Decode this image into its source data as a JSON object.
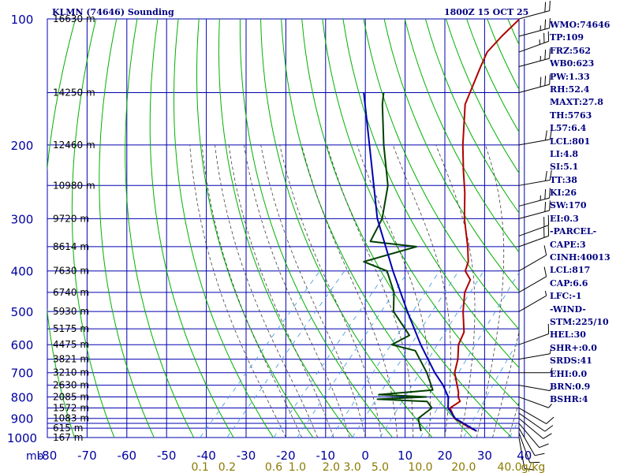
{
  "header": {
    "title": "KLMN (74646) Sounding",
    "time": "1800Z 15 OCT 25"
  },
  "stats": [
    "WMO:74646",
    "TP:109",
    "FRZ:562",
    "WB0:623",
    "PW:1.33",
    "RH:52.4",
    "MAXT:27.8",
    "TH:5763",
    "L57:6.4",
    "LCL:801",
    "LI:4.8",
    "SI:5.1",
    "TT:38",
    "KI:26",
    "SW:170",
    "EI:0.3",
    "-PARCEL-",
    "CAPE:3",
    "CINH:40013",
    "LCL:817",
    "CAP:6.6",
    "LFC:-1",
    "-WIND-",
    "STM:225/10",
    "HEL:30",
    "SHR+:0.0",
    "SRDS:41",
    "EHI:0.0",
    "BRN:0.9",
    "BSHR:4"
  ],
  "colors": {
    "frame": "#000080",
    "grid": "#0000b0",
    "dry_adiabat": "#00b000",
    "moist_adiabat": "#404040",
    "mixing_ratio": "#4aa0e0",
    "temperature": "#b00000",
    "dewpoint": "#004000",
    "parcel": "#0000b0",
    "axis_text": "#0000a0",
    "mixing_text": "#8b7a00",
    "height_text": "#000000"
  },
  "chart_data": {
    "type": "line",
    "title": "KLMN (74646) Sounding",
    "ylabel": "mb",
    "xlabel": "",
    "pressure_ticks": [
      100,
      200,
      300,
      400,
      500,
      600,
      700,
      800,
      900,
      1000
    ],
    "pressure_tick_labels": [
      "100",
      "200",
      "300",
      "400",
      "500",
      "600",
      "700",
      "800",
      "900",
      "1000"
    ],
    "isobar_levels": [
      100,
      150,
      200,
      250,
      300,
      350,
      400,
      450,
      500,
      550,
      600,
      650,
      700,
      750,
      800,
      850,
      900,
      925,
      950,
      1000
    ],
    "temperature_ticks": [
      -80,
      -70,
      -60,
      -50,
      -40,
      -30,
      -20,
      -10,
      0,
      10,
      20,
      30,
      40
    ],
    "temperature_tick_labels": [
      "-80",
      "-70",
      "-60",
      "-50",
      "-40",
      "-30",
      "-20",
      "-10",
      "0",
      "10",
      "20",
      "30",
      "40"
    ],
    "mixing_ratio_labels": [
      {
        "text": "0.1",
        "w": 0.1
      },
      {
        "text": "0.2",
        "w": 0.2
      },
      {
        "text": "0.6",
        "w": 0.6
      },
      {
        "text": "1.0",
        "w": 1.0
      },
      {
        "text": "2.0",
        "w": 2.0
      },
      {
        "text": "3.0",
        "w": 3.0
      },
      {
        "text": "5.0",
        "w": 5.0
      },
      {
        "text": "10.0",
        "w": 10.0
      },
      {
        "text": "20.0",
        "w": 20.0
      },
      {
        "text": "40.0",
        "w": 40.0
      }
    ],
    "mixing_unit_label": "g/kg",
    "height_labels": [
      {
        "p": 100,
        "text": "16630 m"
      },
      {
        "p": 150,
        "text": "14250 m"
      },
      {
        "p": 200,
        "text": "12460 m"
      },
      {
        "p": 250,
        "text": "10980 m"
      },
      {
        "p": 300,
        "text": "9720 m"
      },
      {
        "p": 350,
        "text": "8614 m"
      },
      {
        "p": 400,
        "text": "7630 m"
      },
      {
        "p": 450,
        "text": "6740 m"
      },
      {
        "p": 500,
        "text": "5930 m"
      },
      {
        "p": 550,
        "text": "5175 m"
      },
      {
        "p": 600,
        "text": "4475 m"
      },
      {
        "p": 650,
        "text": "3821 m"
      },
      {
        "p": 700,
        "text": "3210 m"
      },
      {
        "p": 750,
        "text": "2630 m"
      },
      {
        "p": 800,
        "text": "2085 m"
      },
      {
        "p": 850,
        "text": "1572 m"
      },
      {
        "p": 900,
        "text": "1083 m"
      },
      {
        "p": 950,
        "text": "615 m"
      },
      {
        "p": 1000,
        "text": "167 m"
      }
    ],
    "series": [
      {
        "name": "",
        "kind": "temperature",
        "points": [
          {
            "p": 965,
            "t": 26.5
          },
          {
            "p": 940,
            "t": 23.0
          },
          {
            "p": 900,
            "t": 18.0
          },
          {
            "p": 850,
            "t": 14.5
          },
          {
            "p": 820,
            "t": 15.5
          },
          {
            "p": 800,
            "t": 14.0
          },
          {
            "p": 780,
            "t": 13.0
          },
          {
            "p": 700,
            "t": 7.5
          },
          {
            "p": 650,
            "t": 5.2
          },
          {
            "p": 600,
            "t": 2.0
          },
          {
            "p": 560,
            "t": 0.5
          },
          {
            "p": 500,
            "t": -4.5
          },
          {
            "p": 450,
            "t": -8.5
          },
          {
            "p": 420,
            "t": -10.0
          },
          {
            "p": 400,
            "t": -13.3
          },
          {
            "p": 380,
            "t": -14.7
          },
          {
            "p": 350,
            "t": -18.3
          },
          {
            "p": 300,
            "t": -25.6
          },
          {
            "p": 260,
            "t": -31.5
          },
          {
            "p": 230,
            "t": -37.0
          },
          {
            "p": 200,
            "t": -43.0
          },
          {
            "p": 160,
            "t": -51.8
          },
          {
            "p": 130,
            "t": -56.6
          },
          {
            "p": 120,
            "t": -58.3
          },
          {
            "p": 110,
            "t": -58.3
          },
          {
            "p": 100,
            "t": -57.8
          }
        ]
      },
      {
        "name": "",
        "kind": "dewpoint",
        "points": [
          {
            "p": 965,
            "t": 12.5
          },
          {
            "p": 900,
            "t": 8.9
          },
          {
            "p": 850,
            "t": 9.9
          },
          {
            "p": 820,
            "t": 7.2
          },
          {
            "p": 810,
            "t": -5.8
          },
          {
            "p": 800,
            "t": 6.0
          },
          {
            "p": 790,
            "t": -6.5
          },
          {
            "p": 770,
            "t": 6.0
          },
          {
            "p": 700,
            "t": 0.5
          },
          {
            "p": 620,
            "t": -7.5
          },
          {
            "p": 600,
            "t": -14.8
          },
          {
            "p": 570,
            "t": -12.5
          },
          {
            "p": 500,
            "t": -22.0
          },
          {
            "p": 450,
            "t": -26.3
          },
          {
            "p": 400,
            "t": -33.0
          },
          {
            "p": 380,
            "t": -41.0
          },
          {
            "p": 350,
            "t": -31.2
          },
          {
            "p": 340,
            "t": -44.0
          },
          {
            "p": 300,
            "t": -46.3
          },
          {
            "p": 250,
            "t": -52.5
          },
          {
            "p": 200,
            "t": -62.9
          },
          {
            "p": 160,
            "t": -72.6
          },
          {
            "p": 150,
            "t": -75.0
          }
        ]
      },
      {
        "name": "",
        "kind": "parcel",
        "points": [
          {
            "p": 965,
            "t": 26.5
          },
          {
            "p": 900,
            "t": 18.2
          },
          {
            "p": 850,
            "t": 14.0
          },
          {
            "p": 800,
            "t": 11.5
          },
          {
            "p": 750,
            "t": 7.5
          },
          {
            "p": 700,
            "t": 2.5
          },
          {
            "p": 600,
            "t": -7.5
          },
          {
            "p": 500,
            "t": -18.5
          },
          {
            "p": 400,
            "t": -31.5
          },
          {
            "p": 300,
            "t": -47.5
          },
          {
            "p": 200,
            "t": -66.5
          },
          {
            "p": 150,
            "t": -80.0
          }
        ]
      }
    ],
    "wind_barbs": [
      {
        "p": 1000,
        "dir": 190,
        "spd": 10
      },
      {
        "p": 975,
        "dir": 200,
        "spd": 10
      },
      {
        "p": 950,
        "dir": 210,
        "spd": 10
      },
      {
        "p": 925,
        "dir": 220,
        "spd": 10
      },
      {
        "p": 900,
        "dir": 230,
        "spd": 10
      },
      {
        "p": 875,
        "dir": 235,
        "spd": 10
      },
      {
        "p": 850,
        "dir": 240,
        "spd": 10
      },
      {
        "p": 800,
        "dir": 250,
        "spd": 5
      },
      {
        "p": 750,
        "dir": 260,
        "spd": 5
      },
      {
        "p": 700,
        "dir": 270,
        "spd": 5
      },
      {
        "p": 650,
        "dir": 280,
        "spd": 5
      },
      {
        "p": 600,
        "dir": 290,
        "spd": 10
      },
      {
        "p": 500,
        "dir": 300,
        "spd": 5
      },
      {
        "p": 450,
        "dir": 300,
        "spd": 10
      },
      {
        "p": 400,
        "dir": 300,
        "spd": 10
      },
      {
        "p": 350,
        "dir": 290,
        "spd": 20
      },
      {
        "p": 330,
        "dir": 290,
        "spd": 20
      },
      {
        "p": 300,
        "dir": 285,
        "spd": 20
      },
      {
        "p": 280,
        "dir": 285,
        "spd": 25
      },
      {
        "p": 250,
        "dir": 280,
        "spd": 20
      },
      {
        "p": 200,
        "dir": 280,
        "spd": 20
      },
      {
        "p": 150,
        "dir": 285,
        "spd": 30
      },
      {
        "p": 130,
        "dir": 285,
        "spd": 25
      },
      {
        "p": 120,
        "dir": 290,
        "spd": 25
      },
      {
        "p": 110,
        "dir": 285,
        "spd": 25
      },
      {
        "p": 100,
        "dir": 285,
        "spd": 20
      }
    ]
  }
}
